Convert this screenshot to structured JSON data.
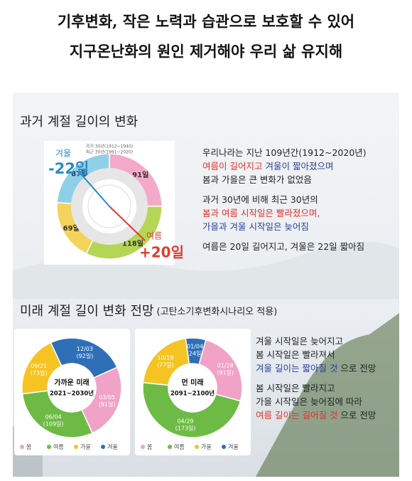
{
  "header": {
    "title_lines": [
      "기후변화, 작은 노력과 습관으로 보호할 수 있어",
      "지구온난화의 원인 제거해야 우리 삶 유지해"
    ]
  },
  "past": {
    "title": "과거 계절 길이의 변화",
    "chart_legend": [
      "과거 30년(1912~1940)",
      "최근 30년(1991~2020)"
    ],
    "segments": [
      {
        "days": 91,
        "label": "91일",
        "color": "#f4a9c9"
      },
      {
        "days": 118,
        "label": "118일",
        "color": "#b5d654"
      },
      {
        "days": 69,
        "label": "69일",
        "color": "#f3d35c"
      },
      {
        "days": 87,
        "label": "87일",
        "color": "#8fd0e8"
      }
    ],
    "winter_callout": {
      "name": "겨울",
      "change": "-22일",
      "color": "#2a8bc9"
    },
    "summer_callout": {
      "name": "여름",
      "change": "+20일",
      "color": "#e03c31"
    },
    "paragraphs": [
      [
        [
          {
            "text": "우리나라는 지난 109년간(1912~2020년)",
            "color": "#222"
          }
        ],
        [
          {
            "text": "여름이 길어지고",
            "color": "#e0302a"
          },
          {
            "text": "겨울이 짧아졌으며",
            "color": "#2a3f9c"
          }
        ],
        [
          {
            "text": "봄과 가을은  큰 변화가 없었음",
            "color": "#222"
          }
        ]
      ],
      [
        [
          {
            "text": "과거 30년에 비해 최근 30년의",
            "color": "#222"
          }
        ],
        [
          {
            "text": "봄과 여름 시작일은 빨라졌으며,",
            "color": "#e0302a"
          }
        ],
        [
          {
            "text": "가을과 겨울 시작일은 늦어짐",
            "color": "#2a3f9c"
          }
        ]
      ],
      [
        [
          {
            "text": "여름은 20일 길어지고, 겨울은 22일 짧아짐",
            "color": "#222"
          }
        ]
      ]
    ]
  },
  "future": {
    "title": "미래 계절 길이 변화 전망",
    "subtitle": "(고탄소기후변화시나리오 적용)",
    "legend": [
      {
        "name": "봄",
        "color": "#f0a3c6"
      },
      {
        "name": "여름",
        "color": "#6dbb45"
      },
      {
        "name": "가을",
        "color": "#f5c423"
      },
      {
        "name": "겨울",
        "color": "#2e6fb7"
      }
    ],
    "charts": [
      {
        "name": "가까운 미래",
        "period": "2021~2030년",
        "segments": [
          {
            "date": "12/03",
            "days": 92,
            "label": "(92일)",
            "color": "#2e6fb7"
          },
          {
            "date": "03/05",
            "days": 91,
            "label": "(91일)",
            "color": "#f0a3c6"
          },
          {
            "date": "06/04",
            "days": 109,
            "label": "(109일)",
            "color": "#6dbb45"
          },
          {
            "date": "09/21",
            "days": 73,
            "label": "(73일)",
            "color": "#f5c423"
          }
        ]
      },
      {
        "name": "먼 미래",
        "period": "2091~2100년",
        "segments": [
          {
            "date": "01/04",
            "days": 24,
            "label": "(24일)",
            "color": "#2e6fb7"
          },
          {
            "date": "01/28",
            "days": 91,
            "label": "(91일)",
            "color": "#f0a3c6"
          },
          {
            "date": "04/29",
            "days": 173,
            "label": "(173일)",
            "color": "#6dbb45"
          },
          {
            "date": "10/19",
            "days": 77,
            "label": "(77일)",
            "color": "#f5c423"
          }
        ]
      }
    ],
    "paragraphs": [
      [
        [
          {
            "text": "겨울 시작일은 늦어지고",
            "color": "#222"
          }
        ],
        [
          {
            "text": "봄 시작일은 빨라져서",
            "color": "#222"
          }
        ],
        [
          {
            "text": "겨울 길이는 짧아질 것",
            "color": "#2a3f9c"
          },
          {
            "text": "으로 전망",
            "color": "#222"
          }
        ]
      ],
      [
        [
          {
            "text": "봄 시작일은 빨라지고",
            "color": "#222"
          }
        ],
        [
          {
            "text": "가을 시작일은 늦어짐에 따라",
            "color": "#222"
          }
        ],
        [
          {
            "text": "여름 길이는 길어질 것",
            "color": "#e0302a"
          },
          {
            "text": "으로 전망",
            "color": "#222"
          }
        ]
      ]
    ]
  }
}
